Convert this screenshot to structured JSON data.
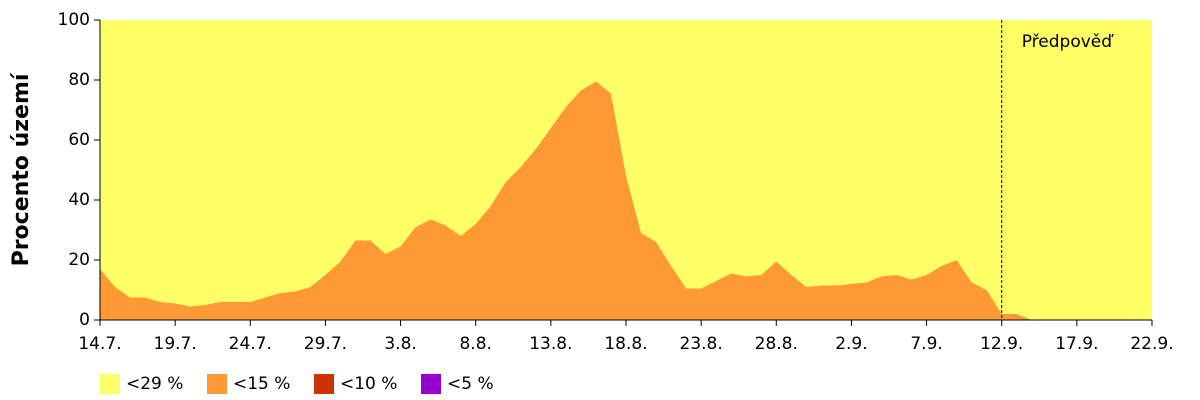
{
  "chart_data": {
    "type": "area",
    "ylabel": "Procento území",
    "categories": [
      "14.7.",
      null,
      null,
      null,
      null,
      "19.7.",
      null,
      null,
      null,
      null,
      "24.7.",
      null,
      null,
      null,
      null,
      "29.7.",
      null,
      null,
      null,
      null,
      "3.8.",
      null,
      null,
      null,
      null,
      "8.8.",
      null,
      null,
      null,
      null,
      "13.8.",
      null,
      null,
      null,
      null,
      "18.8.",
      null,
      null,
      null,
      null,
      "23.8.",
      null,
      null,
      null,
      null,
      "28.8.",
      null,
      null,
      null,
      null,
      "2.9.",
      null,
      null,
      null,
      null,
      "7.9.",
      null,
      null,
      null,
      null,
      "12.9.",
      null,
      null,
      null,
      null,
      "17.9.",
      null,
      null,
      null,
      null,
      "22.9."
    ],
    "series": [
      {
        "name": "<29 %",
        "color": "#ffff66",
        "values": [
          100,
          100,
          100,
          100,
          100,
          100,
          100,
          100,
          100,
          100,
          100,
          100,
          100,
          100,
          100,
          100,
          100,
          100,
          100,
          100,
          100,
          100,
          100,
          100,
          100,
          100,
          100,
          100,
          100,
          100,
          100,
          100,
          100,
          100,
          100,
          100,
          100,
          100,
          100,
          100,
          100,
          100,
          100,
          100,
          100,
          100,
          100,
          100,
          100,
          100,
          100,
          100,
          100,
          100,
          100,
          100,
          100,
          100,
          100,
          100,
          100,
          100,
          100,
          100,
          100,
          100,
          100,
          100,
          100,
          100,
          100
        ]
      },
      {
        "name": "<15 %",
        "color": "#ff9933",
        "values": [
          17,
          11,
          7.5,
          7.5,
          6,
          5.5,
          4.5,
          5,
          6,
          6,
          6,
          7.5,
          9,
          9.5,
          11,
          15,
          19.5,
          26.5,
          26.5,
          22,
          24.5,
          31,
          33.5,
          31.5,
          28,
          32,
          38,
          46,
          51,
          57,
          64,
          71,
          76.5,
          79.5,
          75.5,
          48,
          29,
          26,
          18,
          10.5,
          10.5,
          13,
          15.5,
          14.5,
          15,
          19.5,
          15,
          11,
          11.5,
          11.5,
          12,
          12.5,
          14.5,
          15,
          13.5,
          15,
          18,
          20,
          12.5,
          10,
          2,
          2,
          0,
          0,
          0,
          0,
          0,
          0,
          0,
          0,
          0
        ]
      },
      {
        "name": "<10 %",
        "color": "#cc3300",
        "values": [
          0,
          0,
          0,
          0,
          0,
          0,
          0,
          0,
          0,
          0,
          0,
          0,
          0,
          0,
          0,
          0,
          0,
          0,
          0,
          0,
          0,
          0,
          0,
          0,
          0,
          0,
          0,
          0,
          0,
          0,
          0,
          0,
          0,
          0,
          0,
          0,
          0,
          0,
          0,
          0,
          0,
          0,
          0,
          0,
          0,
          0,
          0,
          0,
          0,
          0,
          0,
          0,
          0,
          0,
          0,
          0,
          0,
          0,
          0,
          0,
          0,
          0,
          0,
          0,
          0,
          0,
          0,
          0,
          0,
          0,
          0
        ]
      },
      {
        "name": "<5 %",
        "color": "#9900cc",
        "values": [
          0,
          0,
          0,
          0,
          0,
          0,
          0,
          0,
          0,
          0,
          0,
          0,
          0,
          0,
          0,
          0,
          0,
          0,
          0,
          0,
          0,
          0,
          0,
          0,
          0,
          0,
          0,
          0,
          0,
          0,
          0,
          0,
          0,
          0,
          0,
          0,
          0,
          0,
          0,
          0,
          0,
          0,
          0,
          0,
          0,
          0,
          0,
          0,
          0,
          0,
          0,
          0,
          0,
          0,
          0,
          0,
          0,
          0,
          0,
          0,
          0,
          0,
          0,
          0,
          0,
          0,
          0,
          0,
          0,
          0,
          0
        ]
      }
    ],
    "annotations": [
      {
        "text": "Předpověď",
        "x": 60
      }
    ],
    "ylim": [
      0,
      100
    ],
    "yticks": [
      0,
      20,
      40,
      60,
      80,
      100
    ],
    "legend": "bottom-left"
  }
}
